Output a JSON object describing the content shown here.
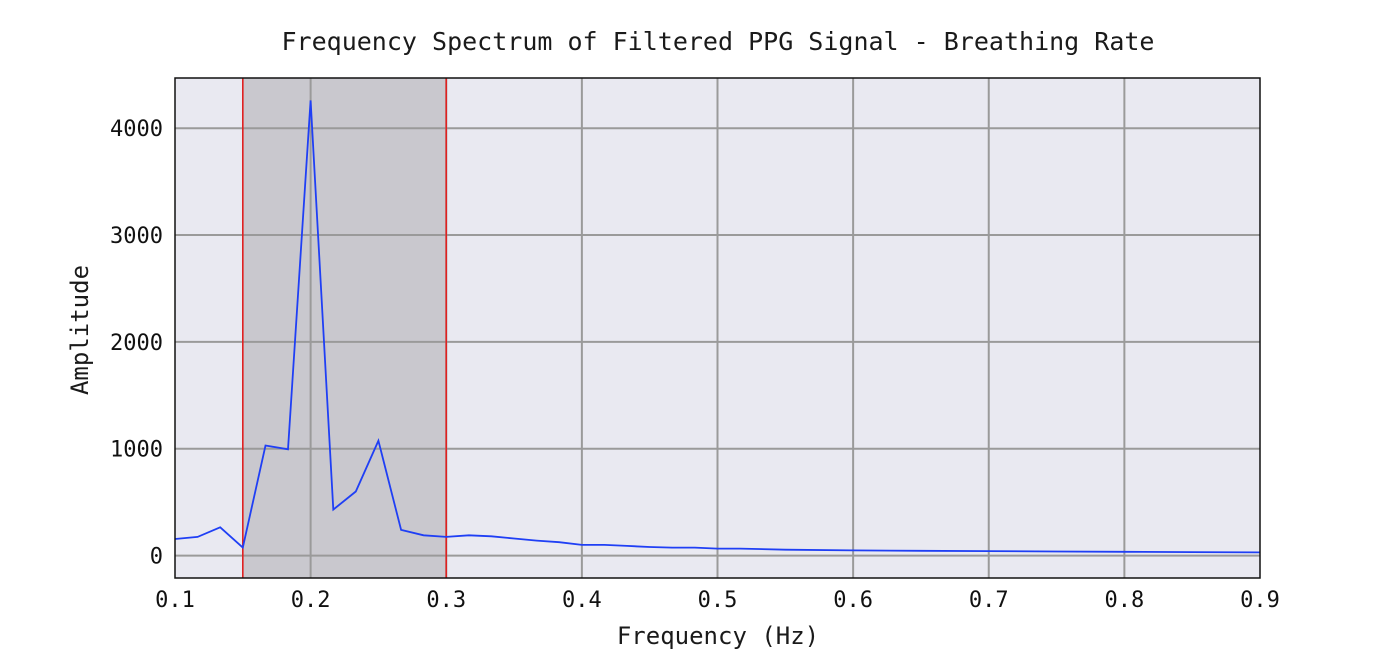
{
  "chart_data": {
    "type": "line",
    "title": "Frequency Spectrum of Filtered PPG Signal - Breathing Rate",
    "xlabel": "Frequency (Hz)",
    "ylabel": "Amplitude",
    "xlim": [
      0.1,
      0.9
    ],
    "ylim": [
      -210,
      4470
    ],
    "x_ticks": [
      0.1,
      0.2,
      0.3,
      0.4,
      0.5,
      0.6,
      0.7,
      0.8,
      0.9
    ],
    "x_tick_labels": [
      "0.1",
      "0.2",
      "0.3",
      "0.4",
      "0.5",
      "0.6",
      "0.7",
      "0.8",
      "0.9"
    ],
    "y_ticks": [
      0,
      1000,
      2000,
      3000,
      4000
    ],
    "y_tick_labels": [
      "0",
      "1000",
      "2000",
      "3000",
      "4000"
    ],
    "grid": true,
    "series": [
      {
        "color": "#1f3ff5",
        "x": [
          0.1,
          0.1167,
          0.1333,
          0.15,
          0.1667,
          0.1833,
          0.2,
          0.2167,
          0.2333,
          0.25,
          0.2667,
          0.2833,
          0.3,
          0.3167,
          0.3333,
          0.35,
          0.3667,
          0.3833,
          0.4,
          0.4167,
          0.4333,
          0.45,
          0.4667,
          0.4833,
          0.5,
          0.5167,
          0.55,
          0.6,
          0.65,
          0.7,
          0.75,
          0.8,
          0.85,
          0.9
        ],
        "values": [
          155,
          175,
          265,
          75,
          1030,
          995,
          4260,
          430,
          600,
          1075,
          240,
          190,
          175,
          190,
          180,
          160,
          140,
          125,
          100,
          100,
          90,
          80,
          75,
          75,
          65,
          65,
          55,
          48,
          45,
          42,
          38,
          35,
          32,
          30
        ]
      }
    ],
    "shaded_region": {
      "x": [
        0.15,
        0.3
      ],
      "color": "#c9c8ce"
    },
    "vertical_lines": [
      {
        "x": 0.15,
        "color": "#e02020"
      },
      {
        "x": 0.3,
        "color": "#e02020"
      }
    ],
    "colors": {
      "plot_background": "#e9e9f1",
      "grid": "#9a9a9a",
      "line": "#1f3ff5"
    }
  }
}
